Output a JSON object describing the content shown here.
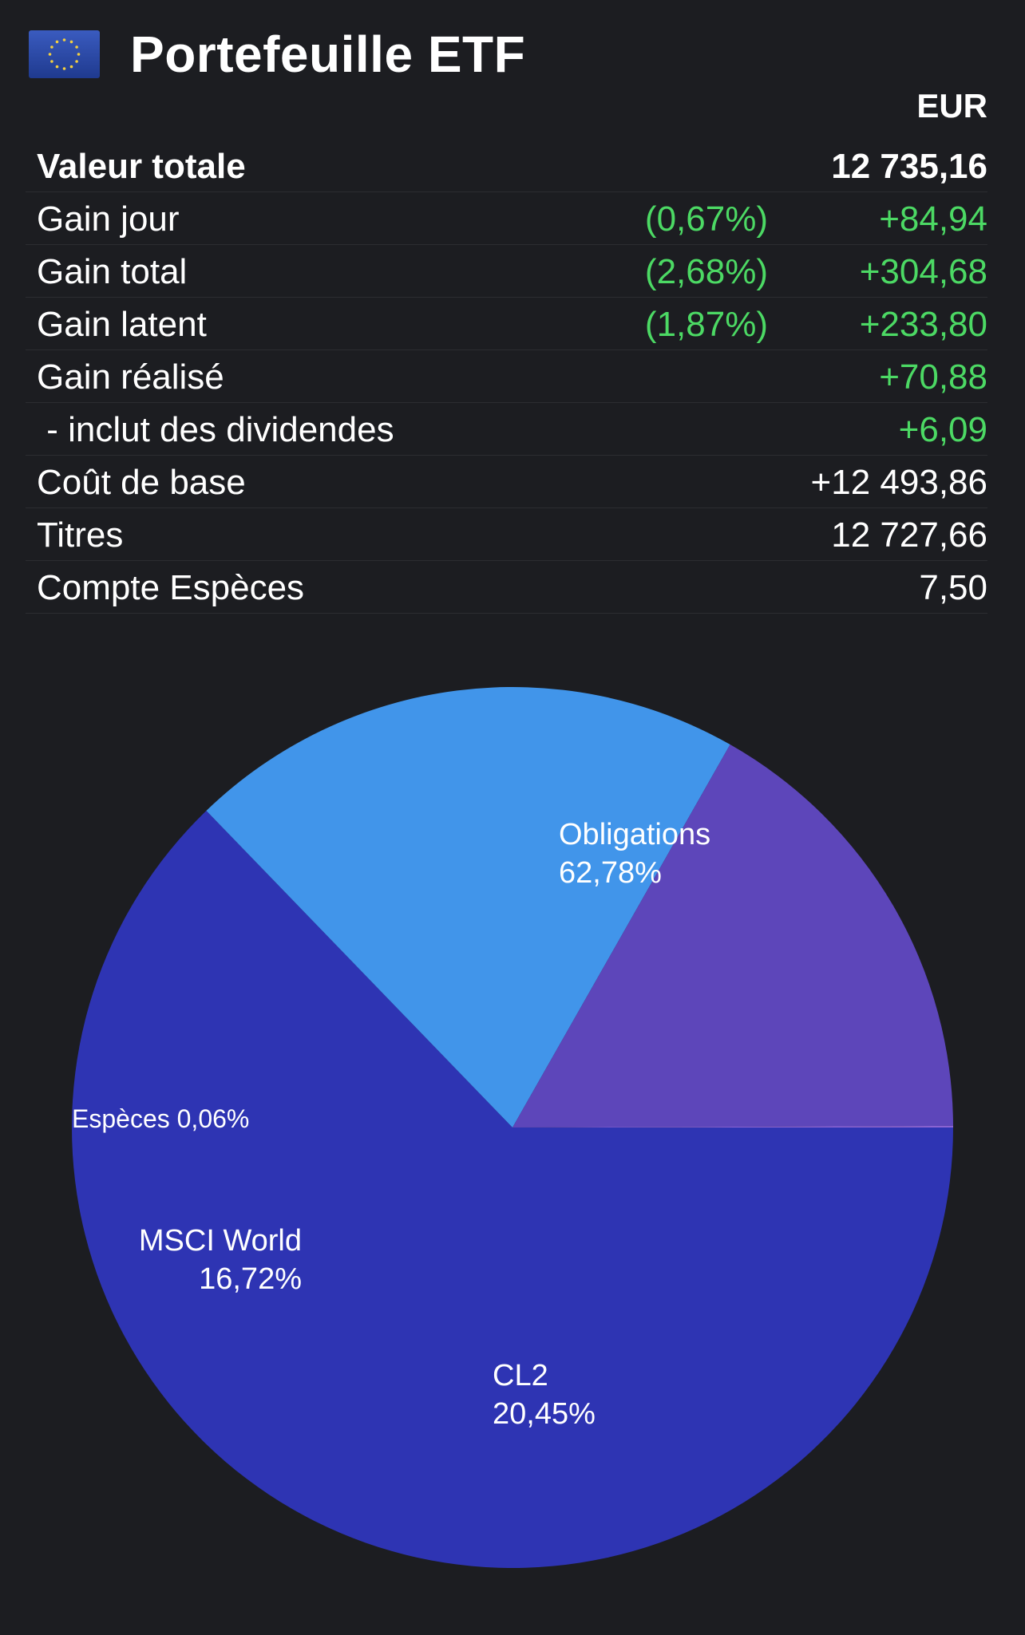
{
  "header": {
    "title": "Portefeuille ETF",
    "flag_icon": "eu-flag-icon",
    "currency": "EUR"
  },
  "colors": {
    "background": "#1c1d21",
    "gain": "#4cd964",
    "obligations": "#2e34b3",
    "cl2": "#4195ea",
    "msci_world": "#5d46ba",
    "especes": "#8a63d2"
  },
  "summary": {
    "rows": [
      {
        "label": "Valeur totale",
        "pct": "",
        "value": "12 735,16",
        "bold": true,
        "gain": false
      },
      {
        "label": "Gain jour",
        "pct": "(0,67%)",
        "value": "+84,94",
        "bold": false,
        "gain": true
      },
      {
        "label": "Gain total",
        "pct": "(2,68%)",
        "value": "+304,68",
        "bold": false,
        "gain": true
      },
      {
        "label": "Gain latent",
        "pct": "(1,87%)",
        "value": "+233,80",
        "bold": false,
        "gain": true
      },
      {
        "label": "Gain réalisé",
        "pct": "",
        "value": "+70,88",
        "bold": false,
        "gain": true
      },
      {
        "label": " - inclut des dividendes",
        "pct": "",
        "value": "+6,09",
        "bold": false,
        "gain": true
      },
      {
        "label": "Coût de base",
        "pct": "",
        "value": "+12 493,86",
        "bold": false,
        "gain": false
      },
      {
        "label": "Titres",
        "pct": "",
        "value": "12 727,66",
        "bold": false,
        "gain": false
      },
      {
        "label": "Compte Espèces",
        "pct": "",
        "value": "7,50",
        "bold": false,
        "gain": false
      }
    ]
  },
  "chart_data": {
    "type": "pie",
    "title": "",
    "slices": [
      {
        "name": "Obligations",
        "value": 62.78,
        "label": "62,78%",
        "color": "#2e34b3"
      },
      {
        "name": "CL2",
        "value": 20.45,
        "label": "20,45%",
        "color": "#4195ea"
      },
      {
        "name": "MSCI World",
        "value": 16.72,
        "label": "16,72%",
        "color": "#5d46ba"
      },
      {
        "name": "Espèces",
        "value": 0.06,
        "label": "0,06%",
        "color": "#8a63d2"
      }
    ],
    "start_angle_deg": 0,
    "direction": "clockwise"
  }
}
